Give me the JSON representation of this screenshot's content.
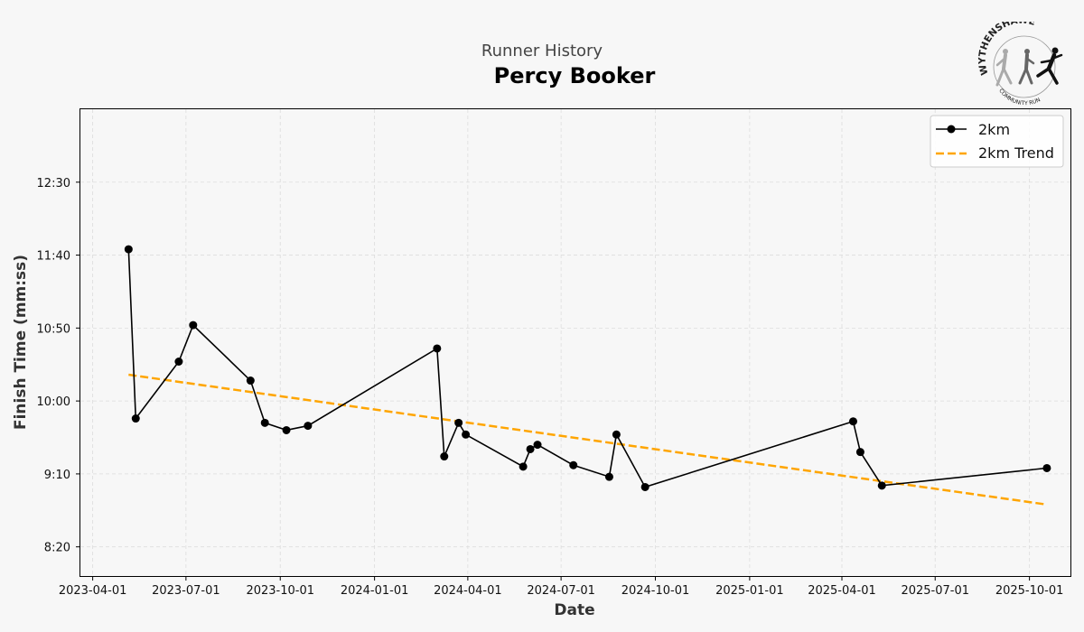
{
  "header": {
    "subtitle": "Runner History",
    "title": "Percy Booker"
  },
  "logo": {
    "top_text": "WYTHENSHAWE",
    "bottom_text": "COMMUNITY RUN"
  },
  "colors": {
    "series": "#000000",
    "trend": "#ffa500",
    "grid": "#dddddd",
    "background": "#f7f7f7"
  },
  "chart_data": {
    "type": "line",
    "title": "Percy Booker",
    "subtitle": "Runner History",
    "xlabel": "Date",
    "ylabel": "Finish Time (mm:ss)",
    "xlim": [
      "2023-03-20",
      "2025-11-10"
    ],
    "ylim_seconds": [
      480,
      800
    ],
    "x_ticks": [
      "2023-04-01",
      "2023-07-01",
      "2023-10-01",
      "2024-01-01",
      "2024-04-01",
      "2024-07-01",
      "2024-10-01",
      "2025-01-01",
      "2025-04-01",
      "2025-07-01",
      "2025-10-01"
    ],
    "y_ticks": [
      {
        "seconds": 500,
        "label": "8:20"
      },
      {
        "seconds": 550,
        "label": "9:10"
      },
      {
        "seconds": 600,
        "label": "10:00"
      },
      {
        "seconds": 650,
        "label": "10:50"
      },
      {
        "seconds": 700,
        "label": "11:40"
      },
      {
        "seconds": 750,
        "label": "12:30"
      }
    ],
    "grid": true,
    "legend_position": "top-right",
    "series": [
      {
        "name": "2km",
        "style": "solid-markers",
        "points": [
          {
            "date": "2023-05-06",
            "seconds": 704
          },
          {
            "date": "2023-05-13",
            "seconds": 588
          },
          {
            "date": "2023-06-24",
            "seconds": 627
          },
          {
            "date": "2023-07-08",
            "seconds": 652
          },
          {
            "date": "2023-09-02",
            "seconds": 614
          },
          {
            "date": "2023-09-16",
            "seconds": 585
          },
          {
            "date": "2023-10-07",
            "seconds": 580
          },
          {
            "date": "2023-10-28",
            "seconds": 583
          },
          {
            "date": "2024-03-02",
            "seconds": 636
          },
          {
            "date": "2024-03-09",
            "seconds": 562
          },
          {
            "date": "2024-03-23",
            "seconds": 585
          },
          {
            "date": "2024-03-30",
            "seconds": 577
          },
          {
            "date": "2024-05-25",
            "seconds": 555
          },
          {
            "date": "2024-06-01",
            "seconds": 567
          },
          {
            "date": "2024-06-08",
            "seconds": 570
          },
          {
            "date": "2024-07-13",
            "seconds": 556
          },
          {
            "date": "2024-08-17",
            "seconds": 548
          },
          {
            "date": "2024-08-24",
            "seconds": 577
          },
          {
            "date": "2024-09-21",
            "seconds": 541
          },
          {
            "date": "2025-04-12",
            "seconds": 586
          },
          {
            "date": "2025-04-19",
            "seconds": 565
          },
          {
            "date": "2025-05-10",
            "seconds": 542
          },
          {
            "date": "2025-10-18",
            "seconds": 554
          }
        ]
      },
      {
        "name": "2km Trend",
        "style": "dashed",
        "points": [
          {
            "date": "2023-05-06",
            "seconds": 618
          },
          {
            "date": "2025-10-18",
            "seconds": 529
          }
        ]
      }
    ]
  }
}
